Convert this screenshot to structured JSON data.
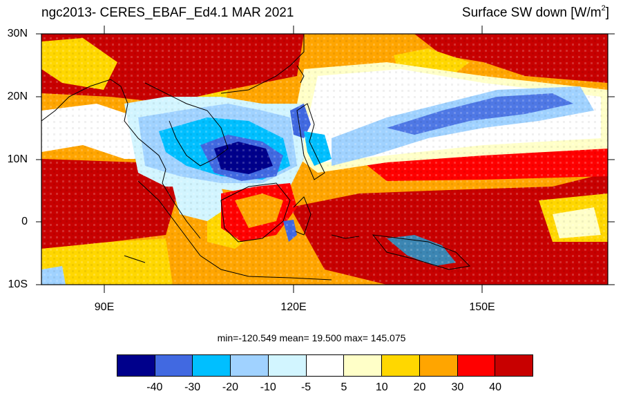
{
  "title": {
    "left": "ngc2013- CERES_EBAF_Ed4.1  MAR 2021",
    "right_main": "Surface SW down [W/m",
    "right_sup": "2",
    "right_end": "]"
  },
  "map": {
    "lon_range": [
      80,
      170
    ],
    "lat_range": [
      -10,
      30
    ],
    "lat_labels": [
      "30N",
      "20N",
      "10N",
      "0",
      "10S"
    ],
    "lon_labels": [
      "90E",
      "120E",
      "150E"
    ]
  },
  "stats": "min=-120.549  mean=  19.500  max= 145.075",
  "colorbar": {
    "colors": [
      "#00008b",
      "#4169e1",
      "#00bfff",
      "#a0d2ff",
      "#d2f5ff",
      "#ffffff",
      "#ffffc8",
      "#ffd700",
      "#ffa500",
      "#ff0000",
      "#c80000"
    ],
    "labels": [
      "-40",
      "-30",
      "-20",
      "-10",
      "-5",
      "5",
      "10",
      "20",
      "30",
      "40"
    ]
  }
}
